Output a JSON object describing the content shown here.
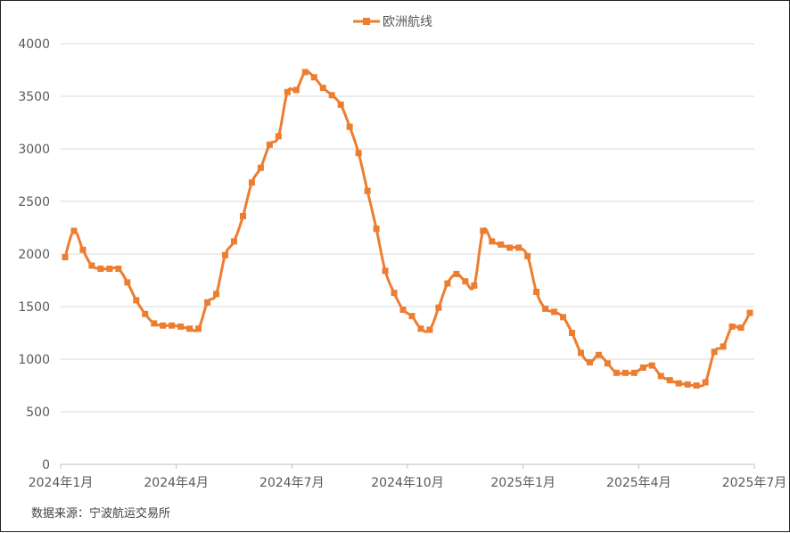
{
  "legend": {
    "label": "欧洲航线"
  },
  "source": "数据来源：宁波航运交易所",
  "colors": {
    "series": "#ED7D31",
    "grid": "#D9D9D9",
    "axis": "#BFBFBF",
    "text": "#595959"
  },
  "chart_data": {
    "type": "line",
    "title": "",
    "xlabel": "",
    "ylabel": "",
    "ylim": [
      0,
      4000
    ],
    "yticks": [
      0,
      500,
      1000,
      1500,
      2000,
      2500,
      3000,
      3500,
      4000
    ],
    "xticks": [
      "2024年1月",
      "2024年4月",
      "2024年7月",
      "2024年10月",
      "2025年1月",
      "2025年4月",
      "2025年7月"
    ],
    "legend_position": "top-center",
    "grid": true,
    "series": [
      {
        "name": "欧洲航线",
        "marker": "square",
        "values": [
          1970,
          2220,
          2040,
          1890,
          1860,
          1860,
          1860,
          1730,
          1560,
          1430,
          1340,
          1320,
          1320,
          1310,
          1290,
          1290,
          1540,
          1620,
          1990,
          2120,
          2360,
          2680,
          2820,
          3040,
          3120,
          3540,
          3560,
          3730,
          3680,
          3580,
          3510,
          3420,
          3210,
          2960,
          2600,
          2240,
          1840,
          1630,
          1470,
          1410,
          1290,
          1280,
          1490,
          1720,
          1810,
          1740,
          1700,
          2220,
          2120,
          2090,
          2060,
          2060,
          1980,
          1640,
          1480,
          1450,
          1400,
          1250,
          1060,
          970,
          1040,
          960,
          870,
          870,
          870,
          920,
          940,
          840,
          800,
          770,
          760,
          750,
          780,
          1070,
          1120,
          1310,
          1300,
          1440
        ]
      }
    ]
  }
}
